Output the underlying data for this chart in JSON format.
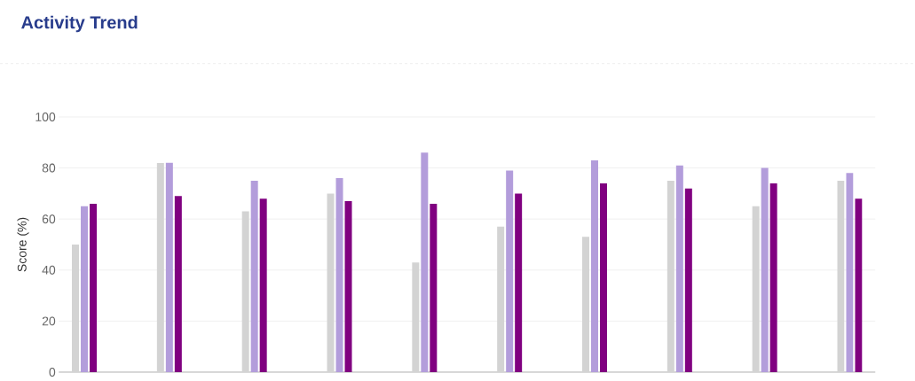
{
  "chart_data": {
    "type": "bar",
    "title": "Activity Trend",
    "ylabel": "Score (%)",
    "categories": [
      null,
      null,
      null,
      null,
      null,
      null,
      null,
      null,
      null,
      null
    ],
    "series": [
      {
        "color": "#d3d3d3",
        "values": [
          50,
          82,
          63,
          70,
          43,
          57,
          53,
          75,
          65,
          75
        ]
      },
      {
        "color": "#b39ddb",
        "values": [
          65,
          82,
          75,
          76,
          86,
          79,
          83,
          81,
          80,
          78
        ]
      },
      {
        "color": "#800080",
        "values": [
          66,
          69,
          68,
          67,
          66,
          70,
          74,
          72,
          74,
          68
        ]
      }
    ],
    "ylim": [
      0,
      100
    ],
    "yticks": [
      0,
      20,
      40,
      60,
      80,
      100
    ],
    "grid": "y"
  }
}
